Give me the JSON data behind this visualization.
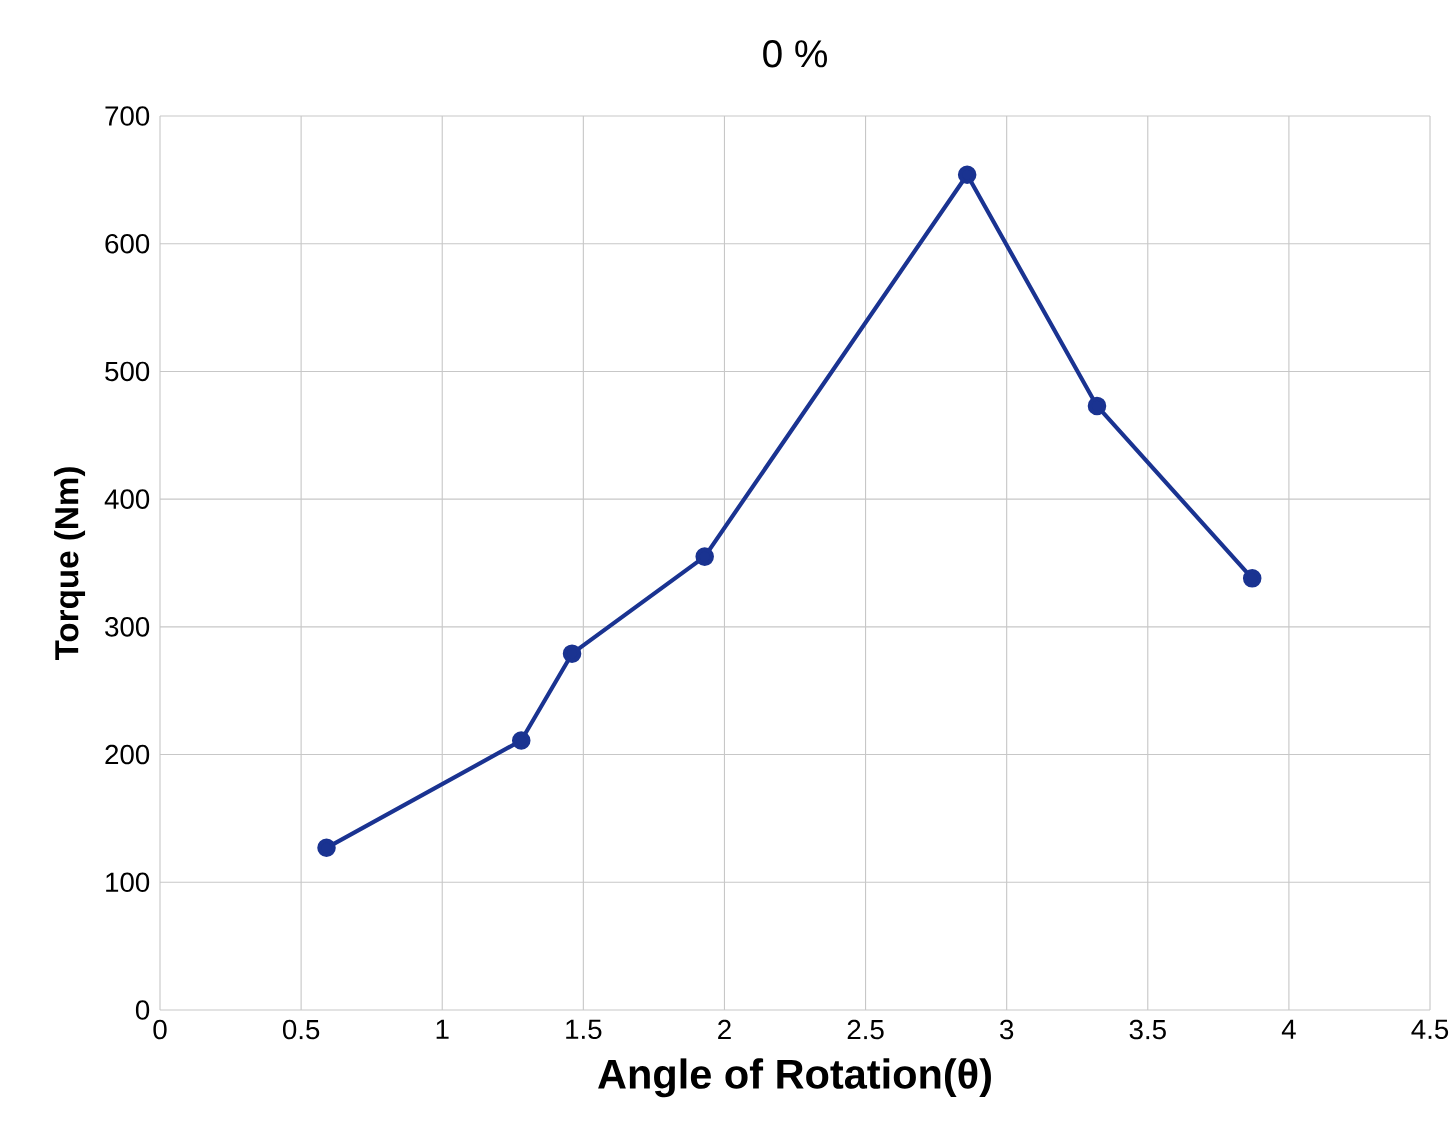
{
  "chart_data": {
    "type": "line",
    "title": "0 %",
    "xlabel": "Angle of Rotation(θ)",
    "ylabel": "Torque (Nm)",
    "x": [
      0.59,
      1.28,
      1.46,
      1.93,
      2.86,
      3.32,
      3.87
    ],
    "series": [
      {
        "color": "#1a3391",
        "values": [
          127,
          211,
          279,
          355,
          654,
          473,
          338
        ]
      }
    ],
    "xlim": [
      0,
      4.5
    ],
    "xticks": [
      0,
      0.5,
      1,
      1.5,
      2,
      2.5,
      3,
      3.5,
      4,
      4.5
    ],
    "ylim": [
      0,
      700
    ],
    "yticks": [
      0,
      100,
      200,
      300,
      400,
      500,
      600,
      700
    ],
    "grid": true,
    "marker": "circle",
    "line_style": "solid"
  }
}
